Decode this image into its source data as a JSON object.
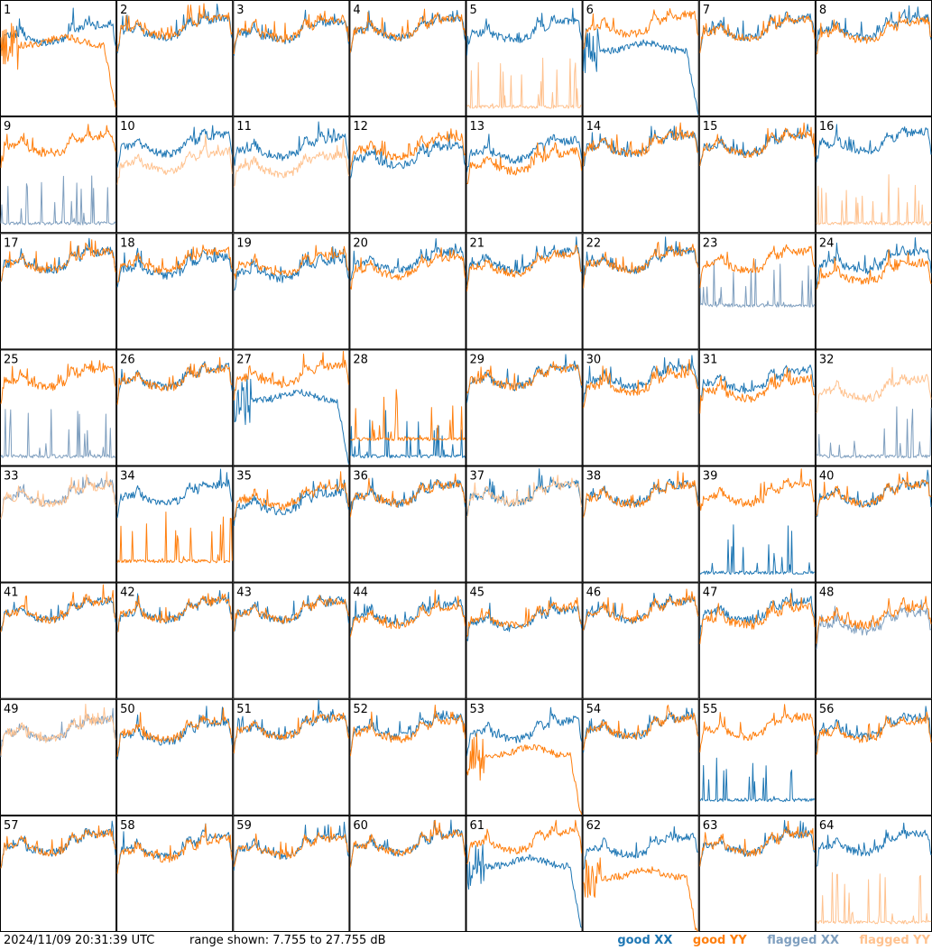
{
  "footer": {
    "timestamp": "2024/11/09 20:31:39 UTC",
    "range_text": "range shown: 7.755 to 27.755 dB"
  },
  "legend": [
    {
      "label": "good XX",
      "color": "#1f77b4"
    },
    {
      "label": "good YY",
      "color": "#ff7f0e"
    },
    {
      "label": "flagged XX",
      "color": "#7f9fbf"
    },
    {
      "label": "flagged YY",
      "color": "#ffc28f"
    }
  ],
  "chart_data": {
    "type": "line",
    "grid_rows": 8,
    "grid_cols": 8,
    "ylim": [
      7.755,
      27.755
    ],
    "y_unit": "dB",
    "series_names": [
      "good XX",
      "good YY",
      "flagged XX",
      "flagged YY"
    ],
    "shape_keys": [
      "typical",
      "typical",
      "typical",
      "typical",
      "spiky",
      "dropout",
      "typical",
      "typical"
    ],
    "panels": [
      {
        "label": "1",
        "xx": {
          "status": "good",
          "shape": "typical",
          "level": 21.5
        },
        "yy": {
          "status": "good",
          "shape": "dropout",
          "level": 20.0
        }
      },
      {
        "label": "2",
        "xx": {
          "status": "good",
          "shape": "typical",
          "level": 22.5
        },
        "yy": {
          "status": "good",
          "shape": "typical",
          "level": 22.8
        }
      },
      {
        "label": "3",
        "xx": {
          "status": "good",
          "shape": "typical",
          "level": 22.0
        },
        "yy": {
          "status": "good",
          "shape": "typical",
          "level": 22.3
        }
      },
      {
        "label": "4",
        "xx": {
          "status": "good",
          "shape": "typical",
          "level": 22.5
        },
        "yy": {
          "status": "good",
          "shape": "typical",
          "level": 22.5
        }
      },
      {
        "label": "5",
        "xx": {
          "status": "good",
          "shape": "typical",
          "level": 22.0
        },
        "yy": {
          "status": "flagged",
          "shape": "spiky",
          "level": 9.0
        }
      },
      {
        "label": "6",
        "xx": {
          "status": "good",
          "shape": "dropout",
          "level": 19.0
        },
        "yy": {
          "status": "good",
          "shape": "typical",
          "level": 23.0
        }
      },
      {
        "label": "7",
        "xx": {
          "status": "good",
          "shape": "typical",
          "level": 22.5
        },
        "yy": {
          "status": "good",
          "shape": "typical",
          "level": 22.3
        }
      },
      {
        "label": "8",
        "xx": {
          "status": "good",
          "shape": "typical",
          "level": 22.5
        },
        "yy": {
          "status": "good",
          "shape": "typical",
          "level": 22.0
        }
      },
      {
        "label": "9",
        "xx": {
          "status": "flagged",
          "shape": "spiky",
          "level": 9.0
        },
        "yy": {
          "status": "good",
          "shape": "typical",
          "level": 22.5
        }
      },
      {
        "label": "10",
        "xx": {
          "status": "good",
          "shape": "typical",
          "level": 22.5
        },
        "yy": {
          "status": "flagged",
          "shape": "typical",
          "level": 19.5
        }
      },
      {
        "label": "11",
        "xx": {
          "status": "good",
          "shape": "typical",
          "level": 22.0
        },
        "yy": {
          "status": "flagged",
          "shape": "typical",
          "level": 19.0
        }
      },
      {
        "label": "12",
        "xx": {
          "status": "good",
          "shape": "typical",
          "level": 20.5
        },
        "yy": {
          "status": "good",
          "shape": "typical",
          "level": 22.0
        }
      },
      {
        "label": "13",
        "xx": {
          "status": "good",
          "shape": "typical",
          "level": 21.5
        },
        "yy": {
          "status": "good",
          "shape": "typical",
          "level": 19.5
        }
      },
      {
        "label": "14",
        "xx": {
          "status": "good",
          "shape": "typical",
          "level": 22.5
        },
        "yy": {
          "status": "good",
          "shape": "typical",
          "level": 22.5
        }
      },
      {
        "label": "15",
        "xx": {
          "status": "good",
          "shape": "typical",
          "level": 22.5
        },
        "yy": {
          "status": "good",
          "shape": "typical",
          "level": 22.5
        }
      },
      {
        "label": "16",
        "xx": {
          "status": "good",
          "shape": "typical",
          "level": 23.0
        },
        "yy": {
          "status": "flagged",
          "shape": "spiky",
          "level": 9.0
        }
      },
      {
        "label": "17",
        "xx": {
          "status": "good",
          "shape": "typical",
          "level": 22.5
        },
        "yy": {
          "status": "good",
          "shape": "typical",
          "level": 22.5
        }
      },
      {
        "label": "18",
        "xx": {
          "status": "good",
          "shape": "typical",
          "level": 21.5
        },
        "yy": {
          "status": "good",
          "shape": "typical",
          "level": 22.5
        }
      },
      {
        "label": "19",
        "xx": {
          "status": "good",
          "shape": "typical",
          "level": 21.0
        },
        "yy": {
          "status": "good",
          "shape": "typical",
          "level": 22.0
        }
      },
      {
        "label": "20",
        "xx": {
          "status": "good",
          "shape": "typical",
          "level": 22.5
        },
        "yy": {
          "status": "good",
          "shape": "typical",
          "level": 21.5
        }
      },
      {
        "label": "21",
        "xx": {
          "status": "good",
          "shape": "typical",
          "level": 22.5
        },
        "yy": {
          "status": "good",
          "shape": "typical",
          "level": 22.0
        }
      },
      {
        "label": "22",
        "xx": {
          "status": "good",
          "shape": "typical",
          "level": 22.5
        },
        "yy": {
          "status": "good",
          "shape": "typical",
          "level": 22.5
        }
      },
      {
        "label": "23",
        "xx": {
          "status": "flagged",
          "shape": "spiky",
          "level": 15.0
        },
        "yy": {
          "status": "good",
          "shape": "typical",
          "level": 22.5
        }
      },
      {
        "label": "24",
        "xx": {
          "status": "good",
          "shape": "typical",
          "level": 22.5
        },
        "yy": {
          "status": "good",
          "shape": "typical",
          "level": 20.5
        }
      },
      {
        "label": "25",
        "xx": {
          "status": "flagged",
          "shape": "spiky",
          "level": 9.0
        },
        "yy": {
          "status": "good",
          "shape": "typical",
          "level": 22.5
        }
      },
      {
        "label": "26",
        "xx": {
          "status": "good",
          "shape": "typical",
          "level": 22.5
        },
        "yy": {
          "status": "good",
          "shape": "typical",
          "level": 22.3
        }
      },
      {
        "label": "27",
        "xx": {
          "status": "good",
          "shape": "dropout",
          "level": 19.0
        },
        "yy": {
          "status": "good",
          "shape": "typical",
          "level": 23.0
        }
      },
      {
        "label": "28",
        "xx": {
          "status": "good",
          "shape": "spiky",
          "level": 9.0
        },
        "yy": {
          "status": "good",
          "shape": "spiky",
          "level": 12.0
        }
      },
      {
        "label": "29",
        "xx": {
          "status": "good",
          "shape": "typical",
          "level": 22.5
        },
        "yy": {
          "status": "good",
          "shape": "typical",
          "level": 22.5
        }
      },
      {
        "label": "30",
        "xx": {
          "status": "good",
          "shape": "typical",
          "level": 22.5
        },
        "yy": {
          "status": "good",
          "shape": "typical",
          "level": 21.5
        }
      },
      {
        "label": "31",
        "xx": {
          "status": "good",
          "shape": "typical",
          "level": 22.0
        },
        "yy": {
          "status": "good",
          "shape": "typical",
          "level": 20.5
        }
      },
      {
        "label": "32",
        "xx": {
          "status": "flagged",
          "shape": "spiky",
          "level": 9.0
        },
        "yy": {
          "status": "flagged",
          "shape": "typical",
          "level": 20.5
        }
      },
      {
        "label": "33",
        "xx": {
          "status": "flagged",
          "shape": "typical",
          "level": 22.5
        },
        "yy": {
          "status": "flagged",
          "shape": "typical",
          "level": 22.3
        }
      },
      {
        "label": "34",
        "xx": {
          "status": "good",
          "shape": "typical",
          "level": 22.5
        },
        "yy": {
          "status": "good",
          "shape": "spiky",
          "level": 11.0
        }
      },
      {
        "label": "35",
        "xx": {
          "status": "good",
          "shape": "typical",
          "level": 21.0
        },
        "yy": {
          "status": "good",
          "shape": "typical",
          "level": 22.0
        }
      },
      {
        "label": "36",
        "xx": {
          "status": "good",
          "shape": "typical",
          "level": 22.5
        },
        "yy": {
          "status": "good",
          "shape": "typical",
          "level": 22.5
        }
      },
      {
        "label": "37",
        "xx": {
          "status": "good",
          "shape": "typical",
          "level": 22.5
        },
        "yy": {
          "status": "flagged",
          "shape": "typical",
          "level": 22.5
        }
      },
      {
        "label": "38",
        "xx": {
          "status": "good",
          "shape": "typical",
          "level": 22.5
        },
        "yy": {
          "status": "good",
          "shape": "typical",
          "level": 22.3
        }
      },
      {
        "label": "39",
        "xx": {
          "status": "good",
          "shape": "spiky",
          "level": 9.0
        },
        "yy": {
          "status": "good",
          "shape": "typical",
          "level": 22.5
        }
      },
      {
        "label": "40",
        "xx": {
          "status": "good",
          "shape": "typical",
          "level": 22.5
        },
        "yy": {
          "status": "good",
          "shape": "typical",
          "level": 22.5
        }
      },
      {
        "label": "41",
        "xx": {
          "status": "good",
          "shape": "typical",
          "level": 22.5
        },
        "yy": {
          "status": "good",
          "shape": "typical",
          "level": 22.5
        }
      },
      {
        "label": "42",
        "xx": {
          "status": "good",
          "shape": "typical",
          "level": 22.5
        },
        "yy": {
          "status": "good",
          "shape": "typical",
          "level": 22.5
        }
      },
      {
        "label": "43",
        "xx": {
          "status": "good",
          "shape": "typical",
          "level": 22.5
        },
        "yy": {
          "status": "good",
          "shape": "typical",
          "level": 22.5
        }
      },
      {
        "label": "44",
        "xx": {
          "status": "good",
          "shape": "typical",
          "level": 22.0
        },
        "yy": {
          "status": "good",
          "shape": "typical",
          "level": 21.5
        }
      },
      {
        "label": "45",
        "xx": {
          "status": "good",
          "shape": "typical",
          "level": 21.0
        },
        "yy": {
          "status": "good",
          "shape": "typical",
          "level": 21.5
        }
      },
      {
        "label": "46",
        "xx": {
          "status": "good",
          "shape": "typical",
          "level": 22.5
        },
        "yy": {
          "status": "good",
          "shape": "typical",
          "level": 22.5
        }
      },
      {
        "label": "47",
        "xx": {
          "status": "good",
          "shape": "typical",
          "level": 22.5
        },
        "yy": {
          "status": "good",
          "shape": "typical",
          "level": 21.5
        }
      },
      {
        "label": "48",
        "xx": {
          "status": "flagged",
          "shape": "typical",
          "level": 20.5
        },
        "yy": {
          "status": "good",
          "shape": "typical",
          "level": 21.5
        }
      },
      {
        "label": "49",
        "xx": {
          "status": "flagged",
          "shape": "typical",
          "level": 22.0
        },
        "yy": {
          "status": "flagged",
          "shape": "typical",
          "level": 22.0
        }
      },
      {
        "label": "50",
        "xx": {
          "status": "good",
          "shape": "typical",
          "level": 21.5
        },
        "yy": {
          "status": "good",
          "shape": "typical",
          "level": 22.0
        }
      },
      {
        "label": "51",
        "xx": {
          "status": "good",
          "shape": "typical",
          "level": 22.5
        },
        "yy": {
          "status": "good",
          "shape": "typical",
          "level": 22.5
        }
      },
      {
        "label": "52",
        "xx": {
          "status": "good",
          "shape": "typical",
          "level": 22.5
        },
        "yy": {
          "status": "good",
          "shape": "typical",
          "level": 22.0
        }
      },
      {
        "label": "53",
        "xx": {
          "status": "good",
          "shape": "typical",
          "level": 22.0
        },
        "yy": {
          "status": "good",
          "shape": "dropout",
          "level": 18.0
        }
      },
      {
        "label": "54",
        "xx": {
          "status": "good",
          "shape": "typical",
          "level": 22.5
        },
        "yy": {
          "status": "good",
          "shape": "typical",
          "level": 22.5
        }
      },
      {
        "label": "55",
        "xx": {
          "status": "good",
          "shape": "spiky",
          "level": 10.0
        },
        "yy": {
          "status": "good",
          "shape": "typical",
          "level": 22.5
        }
      },
      {
        "label": "56",
        "xx": {
          "status": "good",
          "shape": "typical",
          "level": 22.5
        },
        "yy": {
          "status": "good",
          "shape": "typical",
          "level": 22.0
        }
      },
      {
        "label": "57",
        "xx": {
          "status": "good",
          "shape": "typical",
          "level": 22.5
        },
        "yy": {
          "status": "good",
          "shape": "typical",
          "level": 22.5
        }
      },
      {
        "label": "58",
        "xx": {
          "status": "good",
          "shape": "typical",
          "level": 22.0
        },
        "yy": {
          "status": "good",
          "shape": "typical",
          "level": 21.5
        }
      },
      {
        "label": "59",
        "xx": {
          "status": "good",
          "shape": "typical",
          "level": 22.0
        },
        "yy": {
          "status": "good",
          "shape": "typical",
          "level": 22.0
        }
      },
      {
        "label": "60",
        "xx": {
          "status": "good",
          "shape": "typical",
          "level": 22.5
        },
        "yy": {
          "status": "good",
          "shape": "typical",
          "level": 22.5
        }
      },
      {
        "label": "61",
        "xx": {
          "status": "good",
          "shape": "dropout",
          "level": 19.0
        },
        "yy": {
          "status": "good",
          "shape": "typical",
          "level": 23.0
        }
      },
      {
        "label": "62",
        "xx": {
          "status": "good",
          "shape": "typical",
          "level": 22.0
        },
        "yy": {
          "status": "good",
          "shape": "dropout",
          "level": 17.0
        }
      },
      {
        "label": "63",
        "xx": {
          "status": "good",
          "shape": "typical",
          "level": 22.5
        },
        "yy": {
          "status": "good",
          "shape": "typical",
          "level": 22.5
        }
      },
      {
        "label": "64",
        "xx": {
          "status": "good",
          "shape": "typical",
          "level": 22.5
        },
        "yy": {
          "status": "flagged",
          "shape": "spiky",
          "level": 9.0
        }
      }
    ]
  }
}
